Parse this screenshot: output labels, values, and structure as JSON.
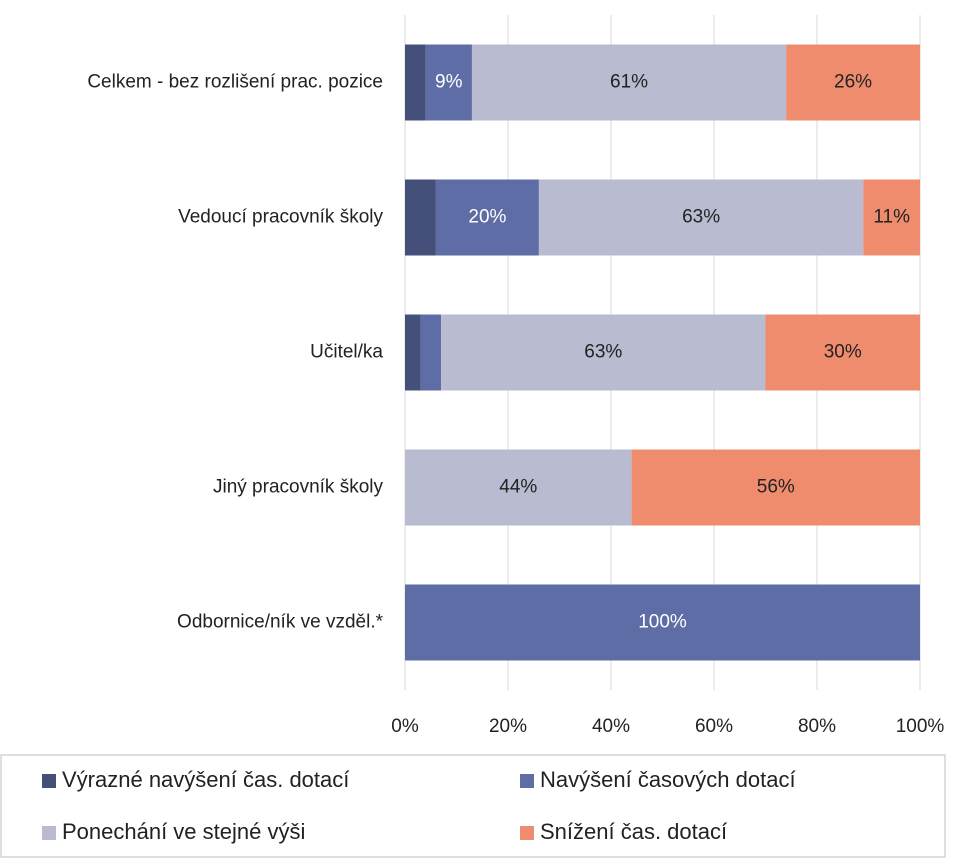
{
  "chart_data": {
    "type": "stacked-bar-horizontal",
    "categories": [
      "Celkem - bez rozlišení prac. pozice",
      "Vedoucí pracovník školy",
      "Učitel/ka",
      "Jiný pracovník školy",
      "Odbornice/ník ve vzděl.*"
    ],
    "series": [
      {
        "name": "Výrazné navýšení čas. dotací",
        "color": "#44507a",
        "values": [
          4,
          6,
          3,
          0,
          0
        ],
        "value_labels": [
          null,
          null,
          null,
          null,
          null
        ]
      },
      {
        "name": "Navýšení časových dotací",
        "color": "#5f6da6",
        "values": [
          9,
          20,
          4,
          0,
          100
        ],
        "value_labels": [
          "9%",
          "20%",
          null,
          null,
          "100%"
        ]
      },
      {
        "name": "Ponechání ve stejné výši",
        "color": "#b9bbd0",
        "values": [
          61,
          63,
          63,
          44,
          0
        ],
        "value_labels": [
          "61%",
          "63%",
          "63%",
          "44%",
          null
        ]
      },
      {
        "name": "Snížení čas. dotací",
        "color": "#f08c6e",
        "values": [
          26,
          11,
          30,
          56,
          0
        ],
        "value_labels": [
          "26%",
          "11%",
          "30%",
          "56%",
          null
        ]
      }
    ],
    "xlim": [
      0,
      100
    ],
    "xticks": [
      {
        "value": 0,
        "label": "0%"
      },
      {
        "value": 20,
        "label": "20%"
      },
      {
        "value": 40,
        "label": "40%"
      },
      {
        "value": 60,
        "label": "60%"
      },
      {
        "value": 80,
        "label": "80%"
      },
      {
        "value": 100,
        "label": "100%"
      }
    ],
    "grid": true
  }
}
